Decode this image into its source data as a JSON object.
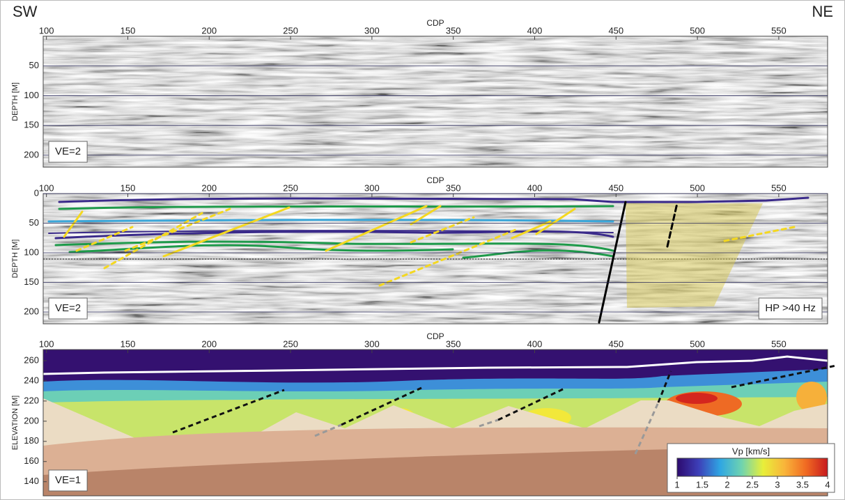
{
  "header": {
    "left": "SW",
    "right": "NE"
  },
  "chart_data": [
    {
      "type": "seismic-section",
      "x_label": "CDP",
      "y_label": "DEPTH [M]",
      "xlim": [
        98,
        580
      ],
      "xticks": [
        100,
        150,
        200,
        250,
        300,
        350,
        400,
        450,
        500,
        550
      ],
      "ylim": [
        0,
        220
      ],
      "yticks": [
        50,
        100,
        150,
        200
      ],
      "y_inverted": true,
      "grid": true,
      "annotations": [
        "VE=2"
      ]
    },
    {
      "type": "seismic-section",
      "x_label": "CDP",
      "y_label": "DEPTH [M]",
      "xlim": [
        98,
        580
      ],
      "xticks": [
        100,
        150,
        200,
        250,
        300,
        350,
        400,
        450,
        500,
        550
      ],
      "ylim": [
        0,
        220
      ],
      "yticks": [
        0,
        50,
        100,
        150,
        200
      ],
      "y_inverted": true,
      "grid": true,
      "annotations": [
        "VE=2",
        "HP >40 Hz"
      ]
    },
    {
      "type": "velocity-section",
      "x_label": "CDP",
      "y_label": "ELEVATION [M]",
      "xlim": [
        98,
        580
      ],
      "xticks": [
        100,
        150,
        200,
        250,
        300,
        350,
        400,
        450,
        500,
        550
      ],
      "ylim": [
        126,
        271
      ],
      "yticks": [
        140,
        160,
        180,
        200,
        220,
        240,
        260
      ],
      "y_inverted": false,
      "grid": false,
      "annotations": [
        "VE=1"
      ],
      "colorbar": {
        "label": "Vp [km/s]",
        "lim": [
          1,
          4
        ],
        "ticks": [
          1,
          1.5,
          2,
          2.5,
          3,
          3.5,
          4
        ],
        "colormap": [
          "#2d0a6e",
          "#3d3fb8",
          "#2fa6e3",
          "#6fd3b0",
          "#e8ef3a",
          "#f9b43a",
          "#f06a22",
          "#c8191e"
        ]
      }
    }
  ]
}
